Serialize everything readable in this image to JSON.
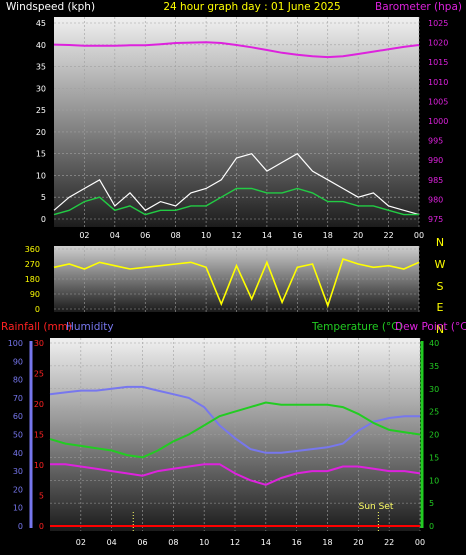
{
  "header": {
    "left": "Windspeed (kph)",
    "center": "24 hour graph day : 01 June 2025",
    "right": "Barometer (hpa)"
  },
  "labels": {
    "rainfall": "Rainfall (mm)",
    "humidity": "Humidity",
    "temperature": "Temperature (°C)",
    "dew_point": "Dew Point (°C)",
    "sun_rise_marker": "",
    "sun_set": "Sun Set"
  },
  "colors": {
    "background": "#000000",
    "grid": "#9a9a9a",
    "wind_gust": "#ffffff",
    "wind_avg": "#22cc44",
    "barometer": "#dd22dd",
    "direction": "#ffff00",
    "temperature": "#22cc22",
    "dew_point": "#dd22dd",
    "humidity": "#7777ee",
    "rainfall": "#ff0000",
    "sun_marker": "#ffff66"
  },
  "chart_data": [
    {
      "type": "line",
      "title": "24 hour graph day : 01 June 2025",
      "x_ticks": [
        "02",
        "04",
        "06",
        "08",
        "10",
        "12",
        "14",
        "16",
        "18",
        "20",
        "22",
        "00"
      ],
      "y_left": {
        "label": "Windspeed (kph)",
        "ticks": [
          "0",
          "5",
          "10",
          "15",
          "20",
          "25",
          "30",
          "35",
          "40",
          "45"
        ],
        "ylim": [
          0,
          45
        ]
      },
      "y_right": {
        "label": "Barometer (hpa)",
        "ticks": [
          "975",
          "980",
          "985",
          "990",
          "995",
          "1000",
          "1005",
          "1010",
          "1015",
          "1020",
          "1025"
        ],
        "ylim": [
          975,
          1025
        ]
      },
      "x": [
        0,
        1,
        2,
        3,
        4,
        5,
        6,
        7,
        8,
        9,
        10,
        11,
        12,
        13,
        14,
        15,
        16,
        17,
        18,
        19,
        20,
        21,
        22,
        23,
        24
      ],
      "series": [
        {
          "key": "gust",
          "axis": "left",
          "values": [
            2,
            5,
            7,
            9,
            3,
            6,
            2,
            4,
            3,
            6,
            7,
            9,
            14,
            15,
            11,
            13,
            15,
            11,
            9,
            7,
            5,
            6,
            3,
            2,
            1
          ]
        },
        {
          "key": "avg",
          "axis": "left",
          "values": [
            1,
            2,
            4,
            5,
            2,
            3,
            1,
            2,
            2,
            3,
            3,
            5,
            7,
            7,
            6,
            6,
            7,
            6,
            4,
            4,
            3,
            3,
            2,
            1,
            1
          ]
        },
        {
          "key": "barometer",
          "axis": "right",
          "values": [
            1019.5,
            1019.4,
            1019.2,
            1019.2,
            1019.2,
            1019.3,
            1019.3,
            1019.6,
            1019.9,
            1020.0,
            1020.1,
            1019.9,
            1019.4,
            1018.8,
            1018.1,
            1017.4,
            1016.9,
            1016.5,
            1016.3,
            1016.5,
            1017.1,
            1017.7,
            1018.3,
            1018.9,
            1019.4
          ]
        }
      ]
    },
    {
      "type": "scatter",
      "title": "Wind direction",
      "x_ticks": [
        "02",
        "04",
        "06",
        "08",
        "10",
        "12",
        "14",
        "16",
        "18",
        "20",
        "22",
        "00"
      ],
      "y_ticks": [
        "0",
        "90",
        "180",
        "270",
        "360"
      ],
      "y_right_labels": [
        "N",
        "W",
        "S",
        "E",
        "N"
      ],
      "ylim": [
        0,
        360
      ],
      "x": [
        0,
        1,
        2,
        3,
        4,
        5,
        6,
        7,
        8,
        9,
        10,
        11,
        12,
        13,
        14,
        15,
        16,
        17,
        18,
        19,
        20,
        21,
        22,
        23,
        24
      ],
      "values": [
        250,
        270,
        240,
        280,
        260,
        240,
        250,
        260,
        270,
        280,
        250,
        30,
        260,
        60,
        280,
        40,
        250,
        270,
        20,
        300,
        270,
        250,
        260,
        240,
        280
      ]
    },
    {
      "type": "line",
      "title": "",
      "x_ticks": [
        "02",
        "04",
        "06",
        "08",
        "10",
        "12",
        "14",
        "16",
        "18",
        "20",
        "22",
        "00"
      ],
      "y_humidity": {
        "label": "Humidity",
        "ticks": [
          "0",
          "10",
          "20",
          "30",
          "40",
          "50",
          "60",
          "70",
          "80",
          "90",
          "100"
        ],
        "ylim": [
          0,
          100
        ]
      },
      "y_rain": {
        "label": "Rainfall (mm)",
        "ticks": [
          "0",
          "5",
          "10",
          "15",
          "20",
          "25",
          "30"
        ],
        "ylim": [
          0,
          30
        ]
      },
      "y_temp": {
        "label": "Temperature (°C)",
        "ticks": [
          "0",
          "5",
          "10",
          "15",
          "20",
          "25",
          "30",
          "35",
          "40"
        ],
        "ylim": [
          0,
          40
        ]
      },
      "x": [
        0,
        1,
        2,
        3,
        4,
        5,
        6,
        7,
        8,
        9,
        10,
        11,
        12,
        13,
        14,
        15,
        16,
        17,
        18,
        19,
        20,
        21,
        22,
        23,
        24
      ],
      "series": [
        {
          "key": "humidity",
          "values": [
            72,
            73,
            74,
            74,
            75,
            76,
            76,
            74,
            72,
            70,
            65,
            55,
            48,
            42,
            40,
            40,
            41,
            42,
            43,
            45,
            52,
            57,
            59,
            60,
            60
          ]
        },
        {
          "key": "temperature",
          "values": [
            19,
            18,
            17.5,
            17,
            16.5,
            15.5,
            15,
            16.5,
            18.5,
            20,
            22,
            24,
            25,
            26,
            27,
            26.5,
            26.5,
            26.5,
            26.5,
            26,
            24.5,
            22.5,
            21,
            20.5,
            20
          ]
        },
        {
          "key": "dew_point",
          "values": [
            13.5,
            13.5,
            13,
            12.5,
            12,
            11.5,
            11,
            12,
            12.5,
            13,
            13.5,
            13.5,
            11.5,
            10,
            9,
            10.5,
            11.5,
            12,
            12,
            13,
            13,
            12.5,
            12,
            12,
            11.5
          ]
        },
        {
          "key": "rainfall",
          "values": [
            0,
            0,
            0,
            0,
            0,
            0,
            0,
            0,
            0,
            0,
            0,
            0,
            0,
            0,
            0,
            0,
            0,
            0,
            0,
            0,
            0,
            0,
            0,
            0,
            0
          ]
        }
      ],
      "sun_markers": [
        {
          "x": 5.4,
          "label": ""
        },
        {
          "x": 21.3,
          "label": "Sun Set"
        }
      ]
    }
  ]
}
